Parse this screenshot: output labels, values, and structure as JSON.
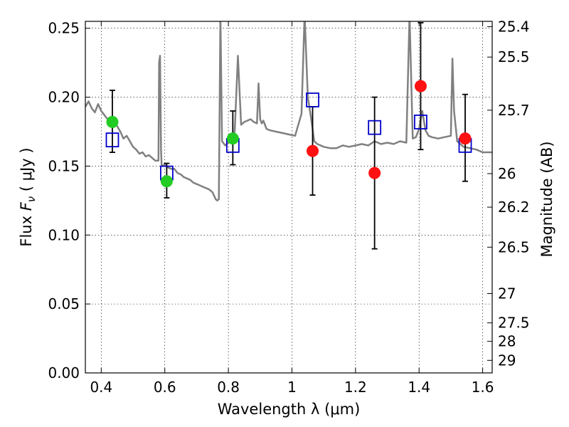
{
  "chart_data": {
    "type": "scatter",
    "xlabel": "Wavelength  λ (μm)",
    "ylabel": "Flux  F_ν  ( μJy )",
    "ylabel_parts": {
      "prefix": "Flux  ",
      "var": "F",
      "sub": "ν",
      "unit": "  ( μJy )"
    },
    "ylabel_right": "Magnitude (AB)",
    "xlim": [
      0.35,
      1.63
    ],
    "ylim": [
      0.0,
      0.255
    ],
    "grid": true,
    "x_ticks": [
      0.4,
      0.6,
      0.8,
      1.0,
      1.2,
      1.4,
      1.6
    ],
    "x_tick_labels": [
      "0.4",
      "0.6",
      "0.8",
      "1",
      "1.2",
      "1.4",
      "1.6"
    ],
    "y_ticks": [
      0.0,
      0.05,
      0.1,
      0.15,
      0.2,
      0.25
    ],
    "y_tick_labels": [
      "0.00",
      "0.05",
      "0.10",
      "0.15",
      "0.20",
      "0.25"
    ],
    "right_ticks": [
      25.4,
      25.5,
      25.7,
      26.0,
      26.2,
      26.5,
      27.0,
      27.5,
      28.0,
      29.0
    ],
    "right_tick_labels": [
      "25.4",
      "25.5",
      "25.7",
      "26",
      "26.2",
      "26.5",
      "27",
      "27.5",
      "28",
      "29"
    ],
    "colors": {
      "template": "#808080",
      "model_box": "#0000cc",
      "detected": "#22cc22",
      "photometry": "#ff1111",
      "errorbar": "#000000"
    },
    "template_spectrum": {
      "x": [
        0.35,
        0.36,
        0.37,
        0.38,
        0.39,
        0.4,
        0.41,
        0.42,
        0.43,
        0.44,
        0.45,
        0.46,
        0.47,
        0.48,
        0.49,
        0.5,
        0.51,
        0.52,
        0.53,
        0.54,
        0.55,
        0.56,
        0.57,
        0.58,
        0.582,
        0.585,
        0.588,
        0.59,
        0.6,
        0.61,
        0.62,
        0.63,
        0.64,
        0.65,
        0.66,
        0.67,
        0.68,
        0.69,
        0.7,
        0.71,
        0.72,
        0.73,
        0.74,
        0.75,
        0.76,
        0.765,
        0.77,
        0.775,
        0.78,
        0.79,
        0.8,
        0.81,
        0.82,
        0.83,
        0.84,
        0.85,
        0.86,
        0.87,
        0.88,
        0.89,
        0.895,
        0.9,
        0.905,
        0.91,
        0.92,
        0.93,
        0.95,
        0.97,
        0.99,
        1.01,
        1.03,
        1.04,
        1.05,
        1.06,
        1.07,
        1.08,
        1.1,
        1.12,
        1.14,
        1.16,
        1.18,
        1.2,
        1.22,
        1.24,
        1.26,
        1.28,
        1.3,
        1.32,
        1.34,
        1.36,
        1.37,
        1.38,
        1.39,
        1.4,
        1.41,
        1.42,
        1.43,
        1.44,
        1.46,
        1.48,
        1.5,
        1.505,
        1.51,
        1.52,
        1.54,
        1.56,
        1.58,
        1.6,
        1.63
      ],
      "y": [
        0.193,
        0.197,
        0.192,
        0.189,
        0.195,
        0.19,
        0.187,
        0.184,
        0.181,
        0.183,
        0.179,
        0.175,
        0.17,
        0.172,
        0.168,
        0.164,
        0.162,
        0.159,
        0.16,
        0.157,
        0.158,
        0.156,
        0.154,
        0.154,
        0.225,
        0.23,
        0.162,
        0.15,
        0.151,
        0.149,
        0.148,
        0.148,
        0.145,
        0.144,
        0.142,
        0.141,
        0.14,
        0.138,
        0.137,
        0.136,
        0.135,
        0.134,
        0.133,
        0.131,
        0.126,
        0.125,
        0.126,
        0.26,
        0.168,
        0.165,
        0.167,
        0.169,
        0.175,
        0.23,
        0.18,
        0.182,
        0.183,
        0.184,
        0.182,
        0.181,
        0.21,
        0.184,
        0.181,
        0.183,
        0.177,
        0.176,
        0.175,
        0.174,
        0.173,
        0.172,
        0.188,
        0.26,
        0.2,
        0.185,
        0.168,
        0.166,
        0.164,
        0.163,
        0.163,
        0.165,
        0.164,
        0.165,
        0.166,
        0.165,
        0.168,
        0.166,
        0.167,
        0.166,
        0.168,
        0.167,
        0.26,
        0.17,
        0.171,
        0.177,
        0.19,
        0.176,
        0.172,
        0.171,
        0.17,
        0.171,
        0.172,
        0.228,
        0.19,
        0.168,
        0.164,
        0.163,
        0.162,
        0.16,
        0.16
      ]
    },
    "model_boxes": [
      {
        "x": 0.435,
        "y": 0.169
      },
      {
        "x": 0.606,
        "y": 0.145
      },
      {
        "x": 0.814,
        "y": 0.165
      },
      {
        "x": 1.065,
        "y": 0.198
      },
      {
        "x": 1.26,
        "y": 0.178
      },
      {
        "x": 1.405,
        "y": 0.182
      },
      {
        "x": 1.545,
        "y": 0.165
      }
    ],
    "detected_points": [
      {
        "x": 0.435,
        "y": 0.182,
        "yerr_low": 0.022,
        "yerr_high": 0.023
      },
      {
        "x": 0.606,
        "y": 0.139,
        "yerr_low": 0.012,
        "yerr_high": 0.013
      },
      {
        "x": 0.814,
        "y": 0.17,
        "yerr_low": 0.019,
        "yerr_high": 0.02
      }
    ],
    "photometry_points": [
      {
        "x": 1.065,
        "y": 0.161,
        "yerr_low": 0.032,
        "yerr_high": 0.032
      },
      {
        "x": 1.26,
        "y": 0.145,
        "yerr_low": 0.055,
        "yerr_high": 0.055
      },
      {
        "x": 1.405,
        "y": 0.208,
        "yerr_low": 0.046,
        "yerr_high": 0.046
      },
      {
        "x": 1.545,
        "y": 0.17,
        "yerr_low": 0.031,
        "yerr_high": 0.032
      }
    ]
  }
}
